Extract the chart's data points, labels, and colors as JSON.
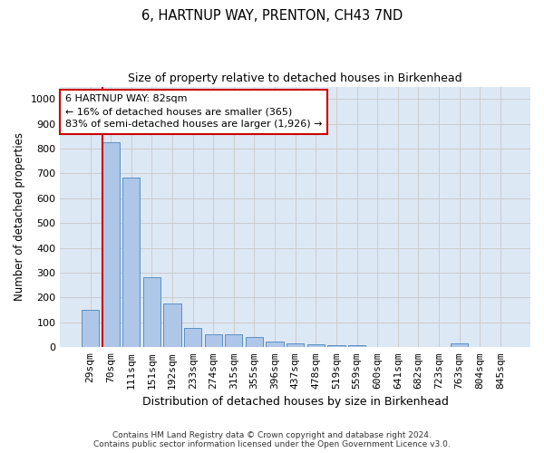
{
  "title_line1": "6, HARTNUP WAY, PRENTON, CH43 7ND",
  "title_line2": "Size of property relative to detached houses in Birkenhead",
  "xlabel": "Distribution of detached houses by size in Birkenhead",
  "ylabel": "Number of detached properties",
  "footer_line1": "Contains HM Land Registry data © Crown copyright and database right 2024.",
  "footer_line2": "Contains public sector information licensed under the Open Government Licence v3.0.",
  "categories": [
    "29sqm",
    "70sqm",
    "111sqm",
    "151sqm",
    "192sqm",
    "233sqm",
    "274sqm",
    "315sqm",
    "355sqm",
    "396sqm",
    "437sqm",
    "478sqm",
    "519sqm",
    "559sqm",
    "600sqm",
    "641sqm",
    "682sqm",
    "723sqm",
    "763sqm",
    "804sqm",
    "845sqm"
  ],
  "values": [
    150,
    825,
    685,
    283,
    175,
    78,
    53,
    52,
    40,
    22,
    14,
    12,
    10,
    10,
    0,
    0,
    0,
    0,
    14,
    0,
    0
  ],
  "bar_color": "#aec6e8",
  "bar_edge_color": "#5a8fc2",
  "highlight_bar_index": 1,
  "highlight_line_color": "#cc0000",
  "annotation_text": "6 HARTNUP WAY: 82sqm\n← 16% of detached houses are smaller (365)\n83% of semi-detached houses are larger (1,926) →",
  "annotation_box_color": "#ffffff",
  "annotation_box_edge_color": "#cc0000",
  "ylim": [
    0,
    1050
  ],
  "yticks": [
    0,
    100,
    200,
    300,
    400,
    500,
    600,
    700,
    800,
    900,
    1000
  ],
  "grid_color": "#cccccc",
  "background_color": "#dde8f5",
  "plot_bg_color": "#ffffff",
  "title1_fontsize": 10.5,
  "title2_fontsize": 9,
  "ylabel_fontsize": 8.5,
  "xlabel_fontsize": 9,
  "tick_fontsize": 8,
  "footer_fontsize": 6.5,
  "annotation_fontsize": 8
}
